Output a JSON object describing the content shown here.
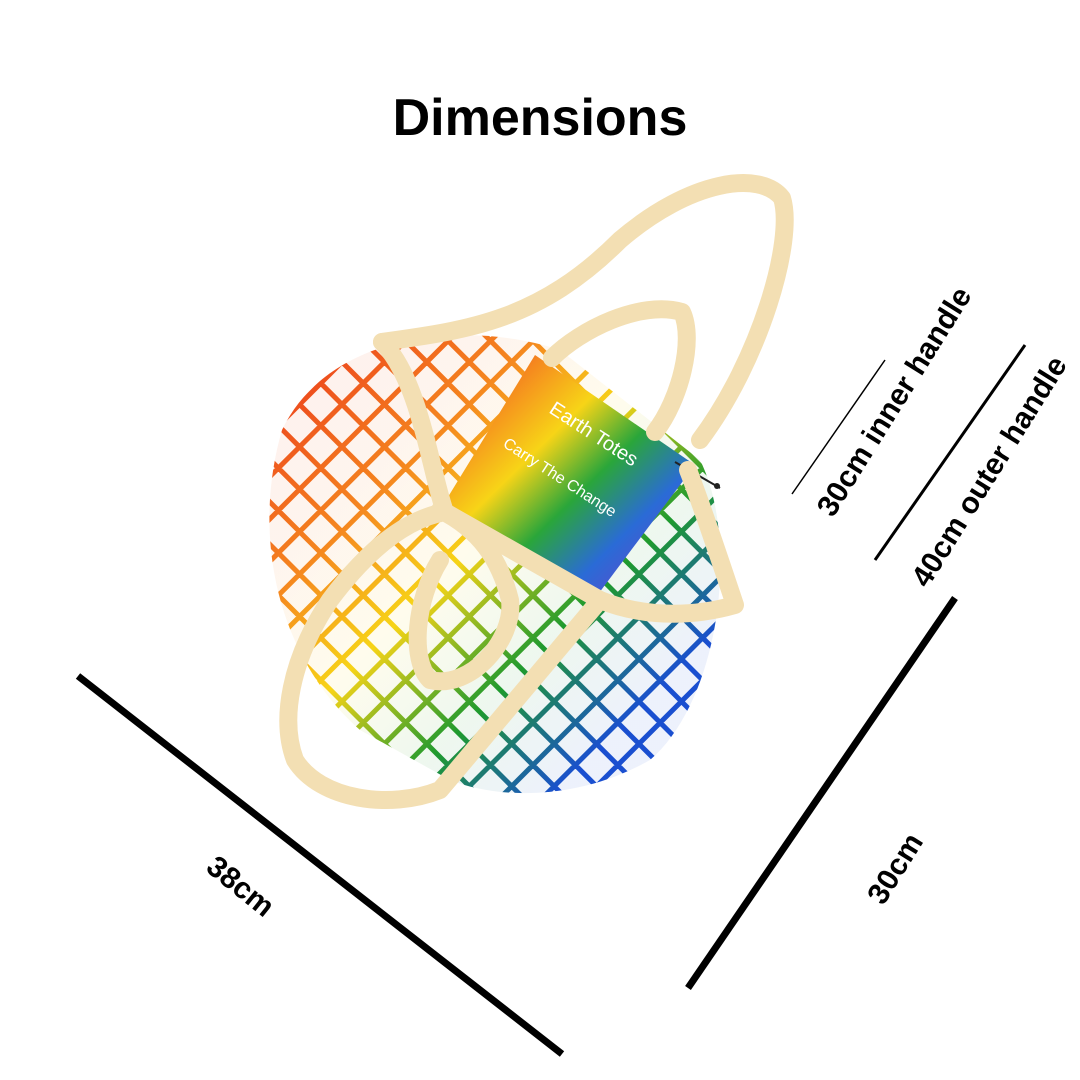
{
  "title": "Dimensions",
  "product": {
    "pouch_brand": "Earth Totes",
    "pouch_tagline": "Carry The Change"
  },
  "measurements": {
    "width": "38cm",
    "height": "30cm",
    "inner_handle": "30cm inner handle",
    "outer_handle": "40cm outer handle"
  },
  "colors": {
    "handle": "#f3dfb3",
    "net_red": "#e8251c",
    "net_orange": "#f5871f",
    "net_yellow": "#f7d417",
    "net_green": "#1f9a2e",
    "net_blue": "#1a4fd0",
    "dimension_line": "#000000"
  }
}
